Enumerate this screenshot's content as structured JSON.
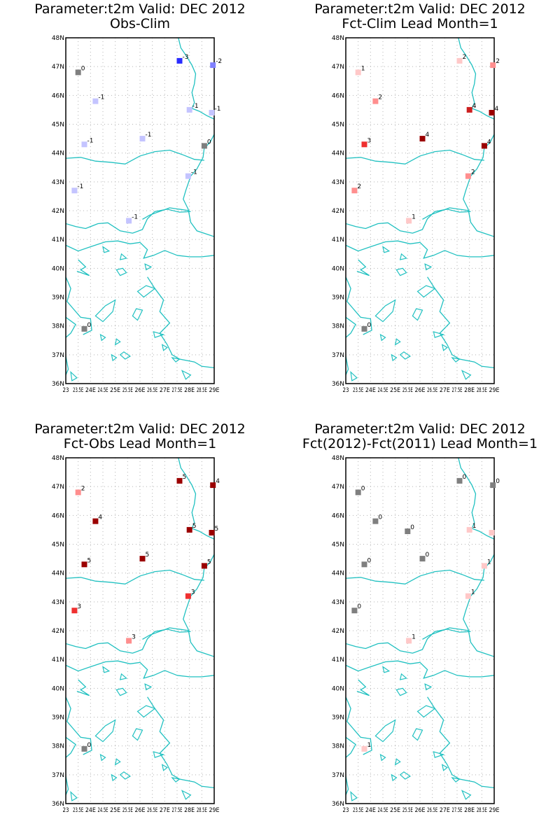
{
  "colors": {
    "coast": "#21c1c1",
    "grid": "#b4b4b4",
    "frame": "#000000",
    "scale": {
      "-3": "#2a2cff",
      "-2": "#8080ff",
      "-1": "#c4c4ff",
      "0": "#7f7f7f",
      "1": "#ffc8c8",
      "2": "#ff8e8e",
      "3": "#ef3030",
      "4": "#cc1f1f",
      "5": "#9b0000"
    }
  },
  "axes": {
    "lon_min": 23,
    "lon_max": 29,
    "lat_min": 36,
    "lat_max": 48,
    "x_ticks": [
      "23",
      "23.5E",
      "24E",
      "24.5E",
      "25E",
      "25.5E",
      "26E",
      "26.5E",
      "27E",
      "27.5E",
      "28E",
      "28.5E",
      "29E"
    ],
    "x_tick_values": [
      23,
      23.5,
      24,
      24.5,
      25,
      25.5,
      26,
      26.5,
      27,
      27.5,
      28,
      28.5,
      29
    ],
    "y_ticks": [
      "36N",
      "37N",
      "38N",
      "39N",
      "40N",
      "41N",
      "42N",
      "43N",
      "44N",
      "45N",
      "46N",
      "47N",
      "48N"
    ],
    "y_tick_values": [
      36,
      37,
      38,
      39,
      40,
      41,
      42,
      43,
      44,
      45,
      46,
      47,
      48
    ]
  },
  "panels": [
    {
      "title": "Parameter:t2m Valid: DEC 2012",
      "subtitle": "Obs-Clim",
      "stations": [
        {
          "lon": 23.5,
          "lat": 46.8,
          "value": "0",
          "class": "0"
        },
        {
          "lon": 27.6,
          "lat": 47.2,
          "value": "-3",
          "class": "-3"
        },
        {
          "lon": 28.95,
          "lat": 47.05,
          "value": "-2",
          "class": "-2"
        },
        {
          "lon": 24.2,
          "lat": 45.8,
          "value": "-1",
          "class": "-1"
        },
        {
          "lon": 28.0,
          "lat": 45.5,
          "value": "-1",
          "class": "-1"
        },
        {
          "lon": 28.9,
          "lat": 45.4,
          "value": "-1",
          "class": "-1"
        },
        {
          "lon": 23.75,
          "lat": 44.3,
          "value": "-1",
          "class": "-1"
        },
        {
          "lon": 26.1,
          "lat": 44.5,
          "value": "-1",
          "class": "-1"
        },
        {
          "lon": 28.6,
          "lat": 44.25,
          "value": "0",
          "class": "0"
        },
        {
          "lon": 27.95,
          "lat": 43.2,
          "value": "-1",
          "class": "-1"
        },
        {
          "lon": 23.35,
          "lat": 42.7,
          "value": "-1",
          "class": "-1"
        },
        {
          "lon": 25.55,
          "lat": 41.65,
          "value": "-1",
          "class": "-1"
        },
        {
          "lon": 23.75,
          "lat": 37.9,
          "value": "0",
          "class": "0"
        }
      ]
    },
    {
      "title": "Parameter:t2m Valid: DEC 2012",
      "subtitle": "Fct-Clim Lead Month=1",
      "stations": [
        {
          "lon": 23.5,
          "lat": 46.8,
          "value": "1",
          "class": "1"
        },
        {
          "lon": 27.6,
          "lat": 47.2,
          "value": "2",
          "class": "1"
        },
        {
          "lon": 28.95,
          "lat": 47.05,
          "value": "2",
          "class": "2"
        },
        {
          "lon": 24.2,
          "lat": 45.8,
          "value": "2",
          "class": "2"
        },
        {
          "lon": 28.0,
          "lat": 45.5,
          "value": "4",
          "class": "4"
        },
        {
          "lon": 28.9,
          "lat": 45.4,
          "value": "4",
          "class": "5"
        },
        {
          "lon": 23.75,
          "lat": 44.3,
          "value": "3",
          "class": "3"
        },
        {
          "lon": 26.1,
          "lat": 44.5,
          "value": "4",
          "class": "5"
        },
        {
          "lon": 28.6,
          "lat": 44.25,
          "value": "4",
          "class": "5"
        },
        {
          "lon": 27.95,
          "lat": 43.2,
          "value": "2",
          "class": "2"
        },
        {
          "lon": 23.35,
          "lat": 42.7,
          "value": "2",
          "class": "2"
        },
        {
          "lon": 25.55,
          "lat": 41.65,
          "value": "1",
          "class": "1"
        },
        {
          "lon": 23.75,
          "lat": 37.9,
          "value": "0",
          "class": "0"
        }
      ]
    },
    {
      "title": "Parameter:t2m Valid: DEC 2012",
      "subtitle": "Fct-Obs Lead Month=1",
      "stations": [
        {
          "lon": 23.5,
          "lat": 46.8,
          "value": "2",
          "class": "2"
        },
        {
          "lon": 27.6,
          "lat": 47.2,
          "value": "5",
          "class": "5"
        },
        {
          "lon": 28.95,
          "lat": 47.05,
          "value": "4",
          "class": "5"
        },
        {
          "lon": 24.2,
          "lat": 45.8,
          "value": "4",
          "class": "5"
        },
        {
          "lon": 28.0,
          "lat": 45.5,
          "value": "5",
          "class": "5"
        },
        {
          "lon": 28.9,
          "lat": 45.4,
          "value": "5",
          "class": "5"
        },
        {
          "lon": 23.75,
          "lat": 44.3,
          "value": "5",
          "class": "5"
        },
        {
          "lon": 26.1,
          "lat": 44.5,
          "value": "5",
          "class": "5"
        },
        {
          "lon": 28.6,
          "lat": 44.25,
          "value": "5",
          "class": "5"
        },
        {
          "lon": 27.95,
          "lat": 43.2,
          "value": "3",
          "class": "3"
        },
        {
          "lon": 23.35,
          "lat": 42.7,
          "value": "3",
          "class": "3"
        },
        {
          "lon": 25.55,
          "lat": 41.65,
          "value": "3",
          "class": "2"
        },
        {
          "lon": 23.75,
          "lat": 37.9,
          "value": "0",
          "class": "0"
        }
      ]
    },
    {
      "title": "Parameter:t2m Valid: DEC 2012",
      "subtitle": "Fct(2012)-Fct(2011) Lead Month=1",
      "stations": [
        {
          "lon": 23.5,
          "lat": 46.8,
          "value": "0",
          "class": "0"
        },
        {
          "lon": 27.6,
          "lat": 47.2,
          "value": "0",
          "class": "0"
        },
        {
          "lon": 28.95,
          "lat": 47.05,
          "value": "0",
          "class": "0"
        },
        {
          "lon": 24.2,
          "lat": 45.8,
          "value": "0",
          "class": "0"
        },
        {
          "lon": 25.5,
          "lat": 45.45,
          "value": "0",
          "class": "0"
        },
        {
          "lon": 28.0,
          "lat": 45.5,
          "value": "1",
          "class": "1"
        },
        {
          "lon": 28.9,
          "lat": 45.4,
          "value": "",
          "class": "1"
        },
        {
          "lon": 23.75,
          "lat": 44.3,
          "value": "0",
          "class": "0"
        },
        {
          "lon": 26.1,
          "lat": 44.5,
          "value": "0",
          "class": "0"
        },
        {
          "lon": 28.6,
          "lat": 44.25,
          "value": "1",
          "class": "1"
        },
        {
          "lon": 27.95,
          "lat": 43.2,
          "value": "1",
          "class": "1"
        },
        {
          "lon": 23.35,
          "lat": 42.7,
          "value": "0",
          "class": "0"
        },
        {
          "lon": 25.55,
          "lat": 41.65,
          "value": "1",
          "class": "1"
        },
        {
          "lon": 23.75,
          "lat": 37.9,
          "value": "1",
          "class": "1"
        }
      ]
    }
  ]
}
